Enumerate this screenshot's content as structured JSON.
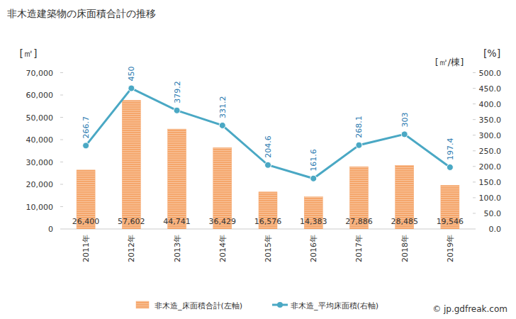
{
  "chart_data": {
    "type": "bar",
    "title": "非木造建築物の床面積合計の推移",
    "y_label": "[㎡]",
    "y2_labels": [
      "[%]",
      "[㎡/棟]"
    ],
    "source": "© jp.gdfreak.com",
    "categories": [
      "2011年",
      "2012年",
      "2013年",
      "2014年",
      "2015年",
      "2016年",
      "2017年",
      "2018年",
      "2019年"
    ],
    "series": [
      {
        "name": "非木造_床面積合計(左軸)",
        "type": "bar",
        "color": "#f5a66b",
        "values": [
          26400,
          57602,
          44741,
          36429,
          16576,
          14383,
          27886,
          28485,
          19546
        ],
        "value_labels": [
          "26,400",
          "57,602",
          "44,741",
          "36,429",
          "16,576",
          "14,383",
          "27,886",
          "28,485",
          "19,546"
        ]
      },
      {
        "name": "非木造_平均床面積(右軸)",
        "type": "line",
        "axis": "y2",
        "color": "#4aa8c4",
        "marker": "circle",
        "values": [
          266.7,
          450,
          379.2,
          331.2,
          204.6,
          161.6,
          268.1,
          303,
          197.4
        ]
      }
    ],
    "ylim": [
      0,
      70000
    ],
    "yticks": [
      0,
      {
        "value": 10000,
        "label": "10,000"
      },
      {
        "value": 20000,
        "label": "20,000"
      },
      {
        "value": 30000,
        "label": "30,000"
      },
      {
        "value": 40000,
        "label": "40,000"
      },
      {
        "value": 50000,
        "label": "50,000"
      },
      {
        "value": 60000,
        "label": "60,000"
      },
      {
        "value": 70000,
        "label": "70,000"
      }
    ],
    "y2lim": [
      0,
      500
    ],
    "y2ticks": [
      {
        "value": 0,
        "label": "0.0"
      },
      {
        "value": 50,
        "label": "50.0"
      },
      {
        "value": 100,
        "label": "100.0"
      },
      {
        "value": 150,
        "label": "150.0"
      },
      {
        "value": 200,
        "label": "200.0"
      },
      {
        "value": 250,
        "label": "250.0"
      },
      {
        "value": 300,
        "label": "300.0"
      },
      {
        "value": 350,
        "label": "350.0"
      },
      {
        "value": 400,
        "label": "400.0"
      },
      {
        "value": 450,
        "label": "450.0"
      },
      {
        "value": 500,
        "label": "500.0"
      }
    ],
    "grid": false,
    "data_labels": true,
    "legend": "bottom"
  }
}
